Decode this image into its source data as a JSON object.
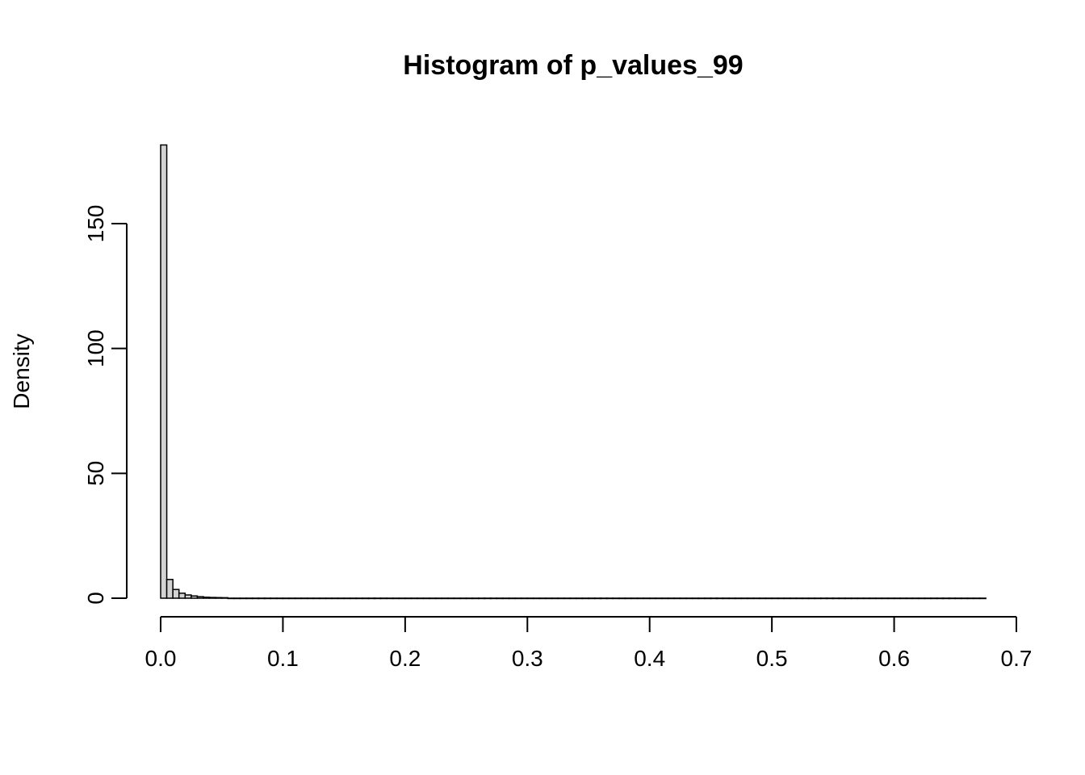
{
  "chart_data": {
    "type": "bar",
    "title": "Histogram of p_values_99",
    "xlabel": "",
    "ylabel": "Density",
    "xlim": [
      0,
      0.7
    ],
    "ylim": [
      0,
      180
    ],
    "x_ticks": [
      "0.0",
      "0.1",
      "0.2",
      "0.3",
      "0.4",
      "0.5",
      "0.6",
      "0.7"
    ],
    "y_ticks": [
      "0",
      "50",
      "100",
      "150"
    ],
    "bin_width": 0.005,
    "bin_start": 0,
    "bin_end": 0.675,
    "bin_density_leading": [
      181.5,
      7.5,
      3.5,
      2.0,
      1.3,
      0.9,
      0.6,
      0.4,
      0.3,
      0.25,
      0.2
    ],
    "bin_density_tail": 0.02,
    "grid": false,
    "fill_color": "#d3d3d3"
  }
}
